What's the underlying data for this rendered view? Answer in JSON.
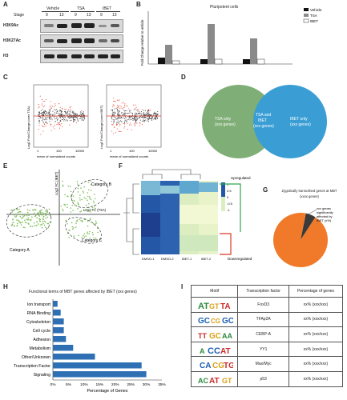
{
  "panels": {
    "A": "A",
    "B": "B",
    "C": "C",
    "D": "D",
    "E": "E",
    "F": "F",
    "G": "G",
    "H": "H",
    "I": "I"
  },
  "panel_a": {
    "conditions": [
      "Vehicle",
      "TSA",
      "IBET"
    ],
    "stage_label": "Stage",
    "stages": [
      "9",
      "13",
      "9",
      "13",
      "9",
      "13"
    ],
    "rows": [
      "H3K9Ac",
      "H3K27Ac",
      "H3"
    ],
    "colors": {
      "band": "#222222",
      "blot_bg": "#d9d9d9"
    }
  },
  "panel_b": {
    "title": "Pluripotent cells",
    "ylabel": "Fold Change relative to vehicle",
    "legend": [
      "Vehicle",
      "TSA",
      "IBET"
    ]
  },
  "panel_c": {
    "left_ylabel": "Log2 Fold Change (over TSA)",
    "right_ylabel": "Log2 Fold Change (over IBET)",
    "left_xlabel": "mean of normalized counts",
    "right_xlabel": "mean of normalized counts",
    "yticks": [
      "4",
      "2",
      "0",
      "-2",
      "-4"
    ],
    "xticks": [
      "1",
      "100",
      "10000"
    ],
    "colors": {
      "sig": "#e83a2a",
      "nonsig": "#444444",
      "line": "#e83a2a"
    }
  },
  "panel_d": {
    "left_text": [
      "TSA only",
      "(xxx genes)"
    ],
    "middle_text": [
      "TSA and",
      "IBET",
      "(xxx genes)"
    ],
    "right_text": [
      "IBET only",
      "(xxx genes)"
    ],
    "colors": {
      "left": "#7fae77",
      "right": "#3a9ed5"
    }
  },
  "panel_e": {
    "ylabel": "Log2 FC (IBET)",
    "xlabel": "Log2 FC (TSA)",
    "category_a": "Category A",
    "category_b": "Category B",
    "category_c": "Category C",
    "ticks": [
      "-10",
      "-5",
      "5",
      "10",
      "5",
      "10",
      "-5",
      "-10"
    ],
    "colors": {
      "points": "#7fbf5a"
    }
  },
  "panel_f": {
    "columns": [
      "DMSO-1",
      "DMSO-2",
      "IBET-1",
      "IBET-2"
    ],
    "scale": [
      "1",
      "0.5",
      "0",
      "-0.5",
      "-1"
    ],
    "upregulated": "Upregulated",
    "downregulated": "Downregulated",
    "colors": {
      "up": "#2ea84f",
      "down": "#d83a2a"
    }
  },
  "panel_g": {
    "title": [
      "Zygotically transcribed genes at MBT",
      "(xxxx genes)"
    ],
    "slice_label": [
      "xxx genes",
      "significantly",
      "affected by",
      "IBET (x%)"
    ],
    "chart_data": {
      "type": "pie",
      "categories": [
        "Affected by IBET",
        "Other"
      ],
      "values": [
        6,
        94
      ],
      "colors": [
        "#3a3a3a",
        "#f07a2a"
      ]
    }
  },
  "panel_h": {
    "title": "Functional terms of MBT genes affected by IBET (xxx genes)",
    "chart_data": {
      "type": "bar",
      "orientation": "horizontal",
      "categories": [
        "Ion transport",
        "RNA Binding",
        "Cytoskeleton",
        "Cell cycle",
        "Adhesion",
        "Metabolism",
        "Other/Unknown",
        "Transcription Factor",
        "Signaling"
      ],
      "values": [
        1.5,
        2.5,
        3.5,
        3.5,
        4.2,
        6.5,
        13.5,
        28.5,
        30
      ],
      "xlabel": "Percentage of Genes",
      "xlim": [
        0,
        35
      ],
      "xticks": [
        "0%",
        "5%",
        "10%",
        "15%",
        "20%",
        "25%",
        "30%",
        "35%"
      ],
      "color": "#2f70b5"
    }
  },
  "panel_i": {
    "headers": [
      "Motif",
      "Transcription factor",
      "Percentage of genes"
    ],
    "rows": [
      {
        "tf": "FoxD3",
        "pct": "xx% (xxx/xxx)"
      },
      {
        "tf": "TFAp2A",
        "pct": "xx% (xxx/xxx)"
      },
      {
        "tf": "CEBP-A",
        "pct": "xx% (xxx/xxx)"
      },
      {
        "tf": "YY1",
        "pct": "xx% (xxx/xxx)"
      },
      {
        "tf": "Max/Myc",
        "pct": "xx% (xxx/xxx)"
      },
      {
        "tf": "p53",
        "pct": "xx% (xxx/xxx)"
      }
    ]
  }
}
